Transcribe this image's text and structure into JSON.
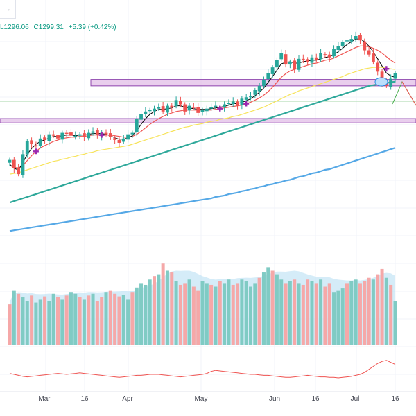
{
  "header": {
    "low": "L1296.06",
    "close": "C1299.31",
    "change": "+5.39 (+0.42%)",
    "arrow_icon": "arrow-right-icon"
  },
  "colors": {
    "up": "#26a69a",
    "down": "#ef5350",
    "ma_short": "#000000",
    "ma_mid": "#ef5350",
    "ma_50": "#f7e35a",
    "ma_100": "#2ea89a",
    "ma_200": "#55a8e6",
    "zone": "#e1bee7",
    "zone_border": "#8e44ad",
    "marker": "#9c27b0",
    "volume_up": "#80cbc4",
    "volume_down": "#f5a8a8",
    "volume_avg": "#b3dcf2",
    "oscillator": "#ef5350",
    "projection_up": "#4caf50",
    "projection_down": "#ef5350"
  },
  "chart_data": {
    "type": "candlestick",
    "x_ticks": [
      "Mar",
      "16",
      "Apr",
      "May",
      "Jun",
      "16",
      "Jul",
      "16"
    ],
    "price_series": [
      1178,
      1166,
      1158,
      1186,
      1204,
      1200,
      1198,
      1208,
      1206,
      1214,
      1212,
      1208,
      1216,
      1215,
      1212,
      1212,
      1214,
      1210,
      1216,
      1218,
      1213,
      1216,
      1214,
      1210,
      1206,
      1202,
      1208,
      1214,
      1216,
      1236,
      1242,
      1246,
      1248,
      1250,
      1252,
      1246,
      1254,
      1252,
      1262,
      1256,
      1246,
      1254,
      1252,
      1244,
      1248,
      1250,
      1252,
      1254,
      1252,
      1256,
      1258,
      1260,
      1254,
      1264,
      1266,
      1268,
      1276,
      1282,
      1290,
      1300,
      1308,
      1318,
      1328,
      1312,
      1316,
      1306,
      1320,
      1318,
      1316,
      1322,
      1318,
      1328,
      1326,
      1322,
      1334,
      1338,
      1344,
      1346,
      1348,
      1352,
      1346,
      1332,
      1326,
      1316,
      1302,
      1286,
      1282,
      1292,
      1300
    ],
    "ma_short": [
      1172,
      1166,
      1164,
      1174,
      1186,
      1194,
      1200,
      1204,
      1206,
      1209,
      1211,
      1211,
      1212,
      1213,
      1213,
      1212,
      1213,
      1213,
      1214,
      1215,
      1215,
      1215,
      1214,
      1212,
      1209,
      1207,
      1207,
      1209,
      1212,
      1219,
      1228,
      1236,
      1242,
      1246,
      1249,
      1249,
      1250,
      1251,
      1254,
      1254,
      1252,
      1251,
      1250,
      1249,
      1249,
      1249,
      1250,
      1251,
      1252,
      1253,
      1255,
      1257,
      1257,
      1259,
      1261,
      1264,
      1268,
      1273,
      1279,
      1287,
      1295,
      1304,
      1313,
      1315,
      1316,
      1314,
      1314,
      1316,
      1317,
      1318,
      1318,
      1320,
      1322,
      1323,
      1326,
      1330,
      1335,
      1340,
      1344,
      1348,
      1348,
      1344,
      1338,
      1330,
      1320,
      1310,
      1300,
      1296,
      1294
    ],
    "ma_mid": [
      1170,
      1168,
      1166,
      1170,
      1177,
      1184,
      1190,
      1195,
      1198,
      1201,
      1204,
      1206,
      1208,
      1209,
      1210,
      1210,
      1211,
      1211,
      1212,
      1213,
      1213,
      1213,
      1213,
      1213,
      1212,
      1211,
      1210,
      1210,
      1211,
      1214,
      1218,
      1223,
      1228,
      1232,
      1236,
      1239,
      1242,
      1244,
      1246,
      1247,
      1248,
      1248,
      1248,
      1248,
      1248,
      1248,
      1248,
      1249,
      1250,
      1251,
      1252,
      1253,
      1254,
      1255,
      1257,
      1259,
      1262,
      1265,
      1269,
      1274,
      1280,
      1287,
      1294,
      1299,
      1303,
      1305,
      1307,
      1309,
      1311,
      1313,
      1314,
      1316,
      1318,
      1319,
      1321,
      1324,
      1327,
      1330,
      1333,
      1336,
      1338,
      1338,
      1337,
      1335,
      1332,
      1328,
      1323,
      1318,
      1314
    ],
    "ma_50": [
      1158,
      1159,
      1160,
      1162,
      1164,
      1166,
      1168,
      1170,
      1172,
      1174,
      1176,
      1177,
      1179,
      1180,
      1182,
      1183,
      1185,
      1186,
      1188,
      1189,
      1191,
      1192,
      1193,
      1194,
      1195,
      1196,
      1197,
      1198,
      1200,
      1202,
      1204,
      1206,
      1208,
      1210,
      1212,
      1214,
      1216,
      1218,
      1220,
      1222,
      1224,
      1225,
      1227,
      1228,
      1229,
      1231,
      1232,
      1233,
      1235,
      1236,
      1237,
      1239,
      1240,
      1242,
      1244,
      1246,
      1248,
      1250,
      1252,
      1255,
      1258,
      1261,
      1264,
      1267,
      1270,
      1272,
      1275,
      1277,
      1279,
      1281,
      1283,
      1285,
      1287,
      1289,
      1291,
      1293,
      1295,
      1298,
      1300,
      1302,
      1304,
      1306,
      1307,
      1308,
      1308,
      1308,
      1307,
      1306,
      1305
    ],
    "ma_100": [
      1118,
      1120,
      1122,
      1124,
      1126,
      1128,
      1130,
      1132,
      1134,
      1136,
      1138,
      1140,
      1142,
      1144,
      1146,
      1148,
      1150,
      1152,
      1154,
      1156,
      1158,
      1160,
      1162,
      1164,
      1166,
      1168,
      1170,
      1172,
      1174,
      1176,
      1178,
      1180,
      1182,
      1184,
      1186,
      1188,
      1190,
      1192,
      1194,
      1196,
      1198,
      1200,
      1202,
      1204,
      1206,
      1208,
      1210,
      1212,
      1214,
      1216,
      1218,
      1220,
      1222,
      1224,
      1226,
      1228,
      1230,
      1232,
      1234,
      1236,
      1238,
      1240,
      1242,
      1244,
      1246,
      1248,
      1250,
      1252,
      1254,
      1256,
      1258,
      1260,
      1262,
      1264,
      1266,
      1268,
      1270,
      1272,
      1274,
      1276,
      1278,
      1280,
      1282,
      1283,
      1284,
      1285,
      1286,
      1287,
      1288
    ],
    "ma_200": [
      1078,
      1079,
      1080,
      1081,
      1082,
      1083,
      1084,
      1085,
      1086,
      1087,
      1088,
      1089,
      1090,
      1091,
      1092,
      1093,
      1094,
      1095,
      1096,
      1097,
      1098,
      1099,
      1100,
      1101,
      1102,
      1103,
      1104,
      1105,
      1106,
      1107,
      1108,
      1109,
      1110,
      1111,
      1112,
      1113,
      1114,
      1115,
      1116,
      1117,
      1118,
      1119,
      1120,
      1121,
      1122,
      1123,
      1124,
      1126,
      1127,
      1128,
      1130,
      1131,
      1132,
      1134,
      1135,
      1137,
      1138,
      1140,
      1141,
      1143,
      1144,
      1146,
      1147,
      1149,
      1150,
      1152,
      1154,
      1155,
      1157,
      1159,
      1160,
      1162,
      1164,
      1165,
      1167,
      1169,
      1171,
      1173,
      1175,
      1177,
      1179,
      1181,
      1183,
      1185,
      1187,
      1189,
      1191,
      1193,
      1195
    ],
    "zones": [
      {
        "from_index": 22,
        "to_index": 89,
        "low": 1282,
        "high": 1291
      },
      {
        "from_index": 0,
        "to_index": 89,
        "low": 1230,
        "high": 1236
      }
    ],
    "markers": [
      6,
      21,
      48,
      54,
      86
    ],
    "volume": [
      46,
      62,
      58,
      54,
      50,
      56,
      48,
      52,
      55,
      50,
      58,
      54,
      52,
      56,
      60,
      58,
      54,
      52,
      56,
      58,
      50,
      54,
      60,
      62,
      58,
      55,
      57,
      52,
      60,
      65,
      70,
      68,
      74,
      78,
      80,
      92,
      84,
      82,
      72,
      68,
      70,
      74,
      66,
      62,
      72,
      70,
      68,
      66,
      72,
      70,
      74,
      68,
      70,
      74,
      72,
      66,
      70,
      76,
      82,
      88,
      84,
      80,
      74,
      70,
      72,
      74,
      70,
      68,
      74,
      72,
      70,
      74,
      66,
      70,
      60,
      62,
      64,
      70,
      72,
      74,
      70,
      72,
      76,
      74,
      80,
      86,
      76,
      68,
      50
    ],
    "volume_down_flags": [
      1,
      0,
      1,
      0,
      0,
      1,
      0,
      0,
      1,
      0,
      0,
      1,
      0,
      1,
      0,
      0,
      1,
      0,
      1,
      0,
      1,
      1,
      0,
      1,
      1,
      1,
      0,
      0,
      1,
      0,
      0,
      0,
      0,
      1,
      0,
      1,
      0,
      1,
      0,
      1,
      1,
      0,
      1,
      1,
      0,
      0,
      1,
      0,
      1,
      0,
      0,
      1,
      1,
      0,
      0,
      0,
      0,
      1,
      0,
      0,
      1,
      0,
      0,
      1,
      0,
      1,
      0,
      1,
      1,
      0,
      1,
      0,
      1,
      1,
      0,
      0,
      0,
      1,
      0,
      0,
      1,
      1,
      1,
      0,
      1,
      1,
      0,
      1,
      0
    ],
    "oscillator": [
      52,
      50,
      48,
      46,
      45,
      46,
      47,
      48,
      49,
      50,
      51,
      52,
      51,
      50,
      51,
      52,
      53,
      52,
      51,
      50,
      49,
      48,
      47,
      46,
      45,
      44,
      45,
      46,
      47,
      48,
      48,
      49,
      50,
      50,
      50,
      49,
      48,
      47,
      46,
      45,
      46,
      47,
      48,
      49,
      50,
      52,
      56,
      58,
      57,
      56,
      55,
      54,
      53,
      52,
      51,
      50,
      50,
      49,
      48,
      48,
      47,
      46,
      45,
      44,
      44,
      45,
      46,
      47,
      48,
      47,
      46,
      45,
      45,
      44,
      44,
      43,
      44,
      45,
      46,
      48,
      50,
      54,
      60,
      66,
      72,
      76,
      78,
      74,
      70
    ]
  }
}
